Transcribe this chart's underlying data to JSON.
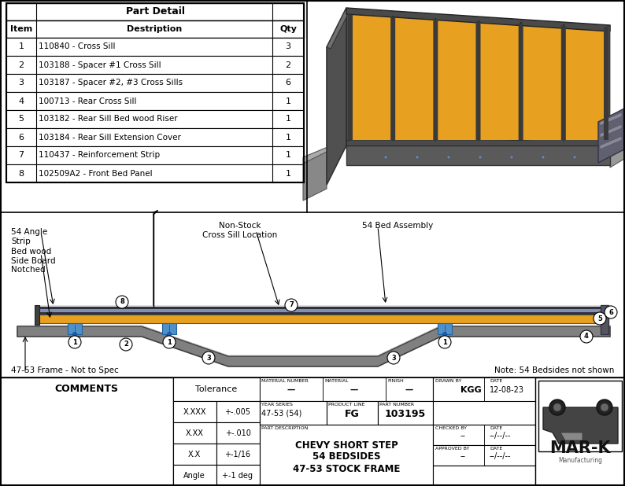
{
  "title": "Part Detail",
  "table_headers": [
    "Item",
    "Destription",
    "Qty"
  ],
  "table_rows": [
    [
      "1",
      "110840 - Cross Sill",
      "3"
    ],
    [
      "2",
      "103188 - Spacer #1 Cross Sill",
      "2"
    ],
    [
      "3",
      "103187 - Spacer #2, #3 Cross Sills",
      "6"
    ],
    [
      "4",
      "100713 - Rear Cross Sill",
      "1"
    ],
    [
      "5",
      "103182 - Rear Sill Bed wood Riser",
      "1"
    ],
    [
      "6",
      "103184 - Rear Sill Extension Cover",
      "1"
    ],
    [
      "7",
      "110437 - Reinforcement Strip",
      "1"
    ],
    [
      "8",
      "102509A2 - Front Bed Panel",
      "1"
    ]
  ],
  "diagram_labels": {
    "54_angle_strip": "54 Angle\nStrip",
    "bed_wood_side_board": "Bed wood\nSide Board\nNotched",
    "non_stock": "Non-Stock\nCross Sill Location",
    "54_bed_assembly": "54 Bed Assembly",
    "frame_note": "47-53 Frame - Not to Spec",
    "bedsides_note": "Note: 54 Bedsides not shown"
  },
  "title_block": {
    "comments": "COMMENTS",
    "tolerance_label": "Tolerance",
    "tolerance_rows": [
      [
        "X.XXX",
        "+-.005"
      ],
      [
        "X.XX",
        "+-.010"
      ],
      [
        "X.X",
        "+-1/16"
      ],
      [
        "Angle",
        "+-1 deg"
      ]
    ],
    "mat_num_label": "MATERIAL NUMBER",
    "mat_num_val": "—",
    "material_label": "MATERIAL",
    "material_val": "—",
    "finish_label": "FINISH",
    "finish_val": "—",
    "year_series_label": "YEAR SERIES",
    "year_series_val": "47-53 (54)",
    "product_line_label": "PRODUCT LINE",
    "product_line_val": "FG",
    "part_number_label": "PART NUMBER",
    "part_number_val": "103195",
    "part_desc_label": "PART DESCRIPTION",
    "part_desc_line1": "CHEVY SHORT STEP",
    "part_desc_line2": "54 BEDSIDES",
    "part_desc_line3": "47-53 STOCK FRAME",
    "drawn_by_label": "DRAWN BY",
    "drawn_by_val": "KGG",
    "drawn_by_date": "12-08-23",
    "checked_by_label": "CHECKED BY",
    "checked_by_val": "--",
    "checked_by_date": "--/--/--",
    "approved_by_label": "APPROVED BY",
    "approved_by_val": "--",
    "approved_by_date": "--/--/--"
  },
  "colors": {
    "background": "#ffffff",
    "frame_gray": "#808080",
    "frame_dark": "#404040",
    "frame_light": "#aaaaaa",
    "bed_wood": "#E8A020",
    "steel_dark": "#404040",
    "spacer_blue": "#5090C8",
    "bed_top_strip": "#303050",
    "bed_mid_strip": "#8090B0",
    "isometric_wood": "#E8A020",
    "isometric_steel": "#4a4a4a",
    "isometric_rail": "#888888"
  },
  "mar_k_text": "MAR-K",
  "mar_k_sub": "Manufacturing"
}
